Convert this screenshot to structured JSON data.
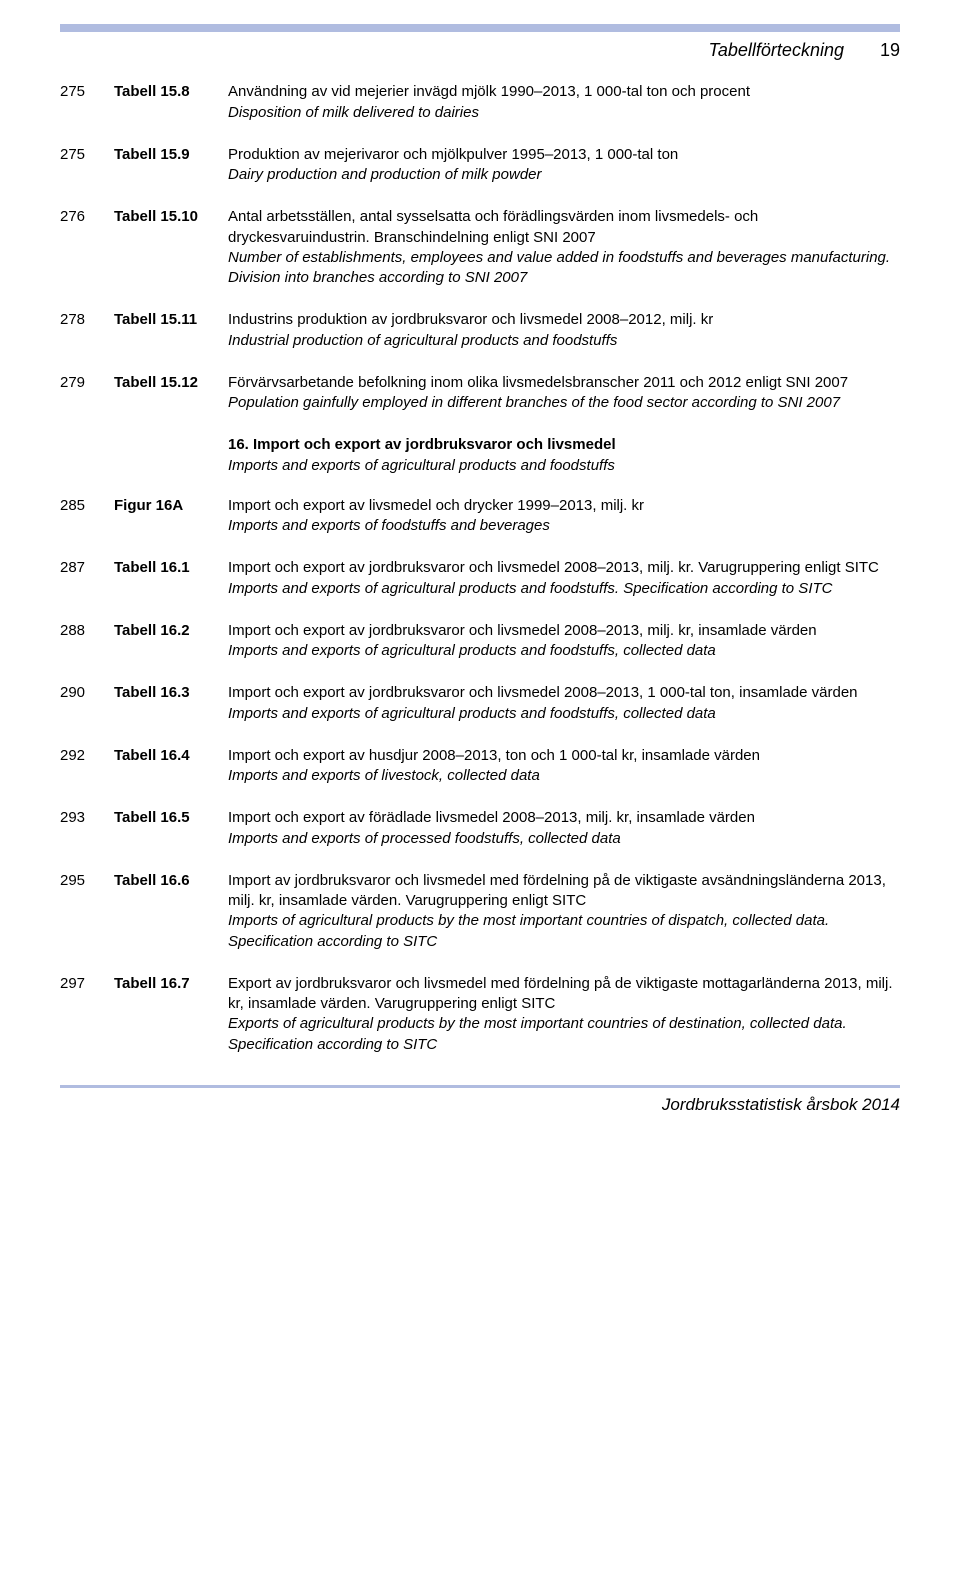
{
  "header": {
    "title": "Tabellförteckning",
    "page_number": "19"
  },
  "colors": {
    "rule": "#b0bce0",
    "text": "#000000",
    "background": "#ffffff"
  },
  "entries": [
    {
      "page": "275",
      "ref": "Tabell 15.8",
      "sv": "Användning av vid mejerier invägd mjölk 1990–2013, 1 000-tal ton och procent",
      "en": "Disposition of milk delivered to dairies"
    },
    {
      "page": "275",
      "ref": "Tabell 15.9",
      "sv": "Produktion av mejerivaror och mjölkpulver 1995–2013, 1 000-tal ton",
      "en": "Dairy production and production of milk powder"
    },
    {
      "page": "276",
      "ref": "Tabell 15.10",
      "sv": "Antal arbetsställen, antal sysselsatta och förädlingsvärden inom livsmedels- och dryckesvaruindustrin. Branschindelning enligt SNI 2007",
      "en": "Number of establishments, employees and value added in foodstuffs and beverages manufacturing. Division into branches according to SNI 2007"
    },
    {
      "page": "278",
      "ref": "Tabell 15.11",
      "sv": "Industrins produktion av jordbruksvaror och livsmedel 2008–2012, milj. kr",
      "en": "Industrial production of agricultural products and foodstuffs"
    },
    {
      "page": "279",
      "ref": "Tabell 15.12",
      "sv": "Förvärvsarbetande befolkning inom olika livsmedelsbranscher 2011 och 2012 enligt SNI 2007",
      "en": "Population gainfully employed in different branches of the food sector according to SNI 2007"
    }
  ],
  "section": {
    "sv": "16. Import och export av jordbruksvaror och livsmedel",
    "en": "Imports and exports of agricultural products and foodstuffs"
  },
  "entries2": [
    {
      "page": "285",
      "ref": "Figur 16A",
      "sv": "Import och export av livsmedel och drycker 1999–2013, milj. kr",
      "en": "Imports and exports of foodstuffs and beverages"
    },
    {
      "page": "287",
      "ref": "Tabell 16.1",
      "sv": "Import och export av jordbruksvaror och livsmedel 2008–2013, milj. kr. Varugruppering enligt SITC",
      "en": "Imports and exports of agricultural products and foodstuffs. Specification according to SITC"
    },
    {
      "page": "288",
      "ref": "Tabell 16.2",
      "sv": "Import och export av jordbruksvaror och livsmedel 2008–2013, milj. kr, insamlade värden",
      "en": "Imports and exports of agricultural products and foodstuffs, collected data"
    },
    {
      "page": "290",
      "ref": "Tabell 16.3",
      "sv": "Import och export av jordbruksvaror och livsmedel 2008–2013, 1 000-tal ton, insamlade värden",
      "en": "Imports and exports of agricultural products and foodstuffs, collected data"
    },
    {
      "page": "292",
      "ref": "Tabell 16.4",
      "sv": "Import och export av husdjur 2008–2013, ton och 1 000-tal kr, insamlade värden",
      "en": "Imports and exports of livestock, collected data"
    },
    {
      "page": "293",
      "ref": "Tabell 16.5",
      "sv": "Import och export av förädlade livsmedel 2008–2013, milj. kr, insamlade värden",
      "en": "Imports and exports of processed foodstuffs, collected data"
    },
    {
      "page": "295",
      "ref": "Tabell 16.6",
      "sv": "Import av jordbruksvaror och livsmedel med fördelning på de viktigaste avsändningsländerna 2013, milj. kr, insamlade värden. Varugruppering enligt SITC",
      "en": "Imports of agricultural products by the most important countries of dispatch, collected data. Specification according to SITC"
    },
    {
      "page": "297",
      "ref": "Tabell 16.7",
      "sv": "Export av jordbruksvaror och livsmedel med fördelning på de viktigaste mottagarländerna 2013, milj. kr, insamlade värden. Varugruppering enligt SITC",
      "en": "Exports of agricultural products by the most important countries of destination, collected data. Specification according to SITC"
    }
  ],
  "footer": "Jordbruksstatistisk årsbok 2014"
}
